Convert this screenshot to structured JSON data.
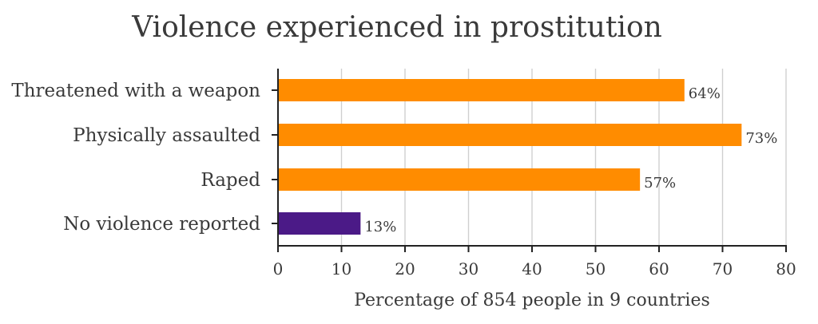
{
  "chart_data": {
    "type": "bar",
    "orientation": "horizontal",
    "title": "Violence experienced in prostitution",
    "xlabel": "Percentage of 854 people in 9 countries",
    "ylabel": "",
    "categories": [
      "Threatened with a weapon",
      "Physically assaulted",
      "Raped",
      "No violence reported"
    ],
    "values": [
      64,
      73,
      57,
      13
    ],
    "value_labels": [
      "64%",
      "73%",
      "57%",
      "13%"
    ],
    "bar_colors": [
      "#ff8c00",
      "#ff8c00",
      "#ff8c00",
      "#4b1a87"
    ],
    "xlim": [
      0,
      80
    ],
    "xticks": [
      0,
      10,
      20,
      30,
      40,
      50,
      60,
      70,
      80
    ],
    "grid": "vertical"
  }
}
